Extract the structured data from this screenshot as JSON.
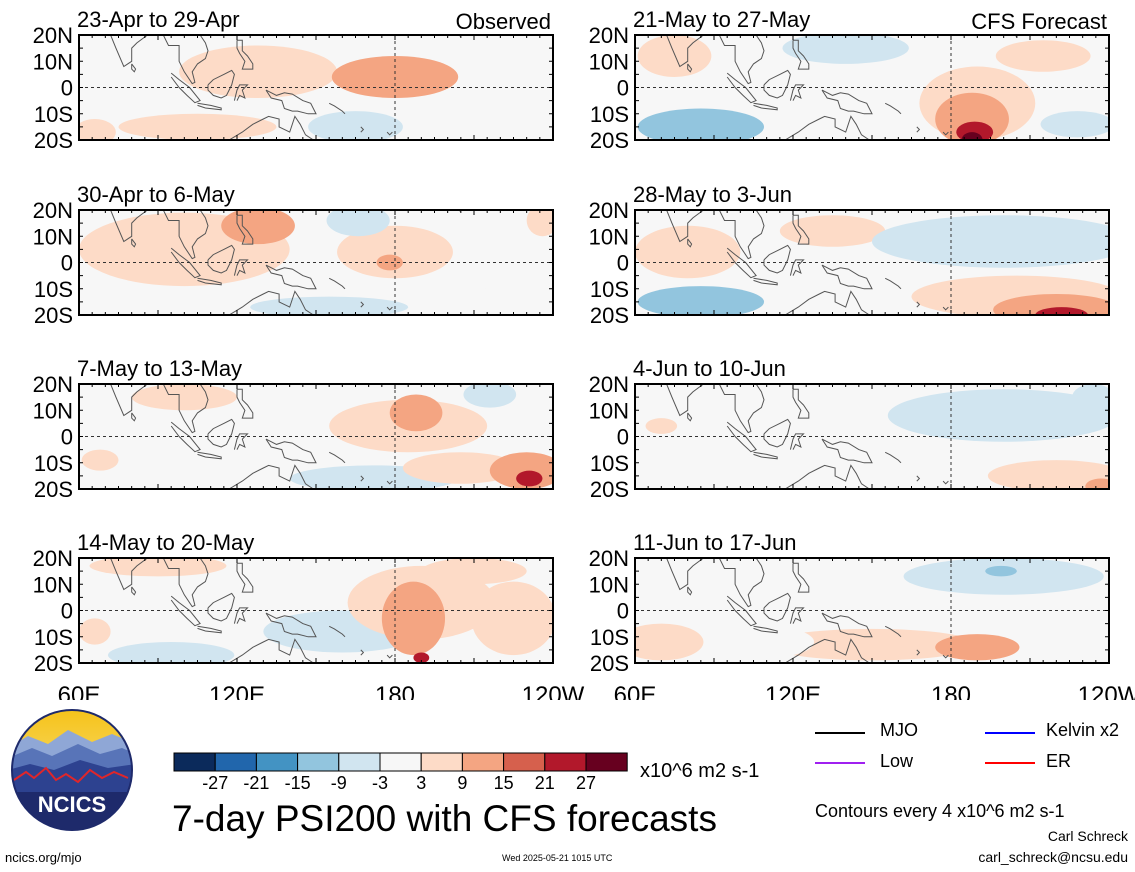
{
  "chart_data": {
    "type": "heatmap",
    "title": "7-day PSI200 with CFS forecasts",
    "units": "x10^6 m2 s-1",
    "contour_note": "Contours every 4 x10^6 m2 s-1",
    "x_ticks": [
      "60E",
      "120E",
      "180",
      "120W"
    ],
    "y_ticks": [
      "20N",
      "10N",
      "0",
      "10S",
      "20S"
    ],
    "xlim_deg_east": [
      60,
      240
    ],
    "ylim_deg": [
      -20,
      20
    ],
    "columns": [
      {
        "label": "Observed",
        "panels": [
          {
            "title": "23-Apr to 29-Apr",
            "blobs": [
              {
                "lon": 180,
                "lat": 4,
                "rlon": 24,
                "rlat": 8,
                "value": 11
              },
              {
                "lon": 128,
                "lat": 6,
                "rlon": 30,
                "rlat": 10,
                "value": 4
              },
              {
                "lon": 66,
                "lat": -17,
                "rlon": 8,
                "rlat": 5,
                "value": 6
              },
              {
                "lon": 165,
                "lat": -15,
                "rlon": 18,
                "rlat": 6,
                "value": -8
              },
              {
                "lon": 105,
                "lat": -15,
                "rlon": 30,
                "rlat": 5,
                "value": 4
              },
              {
                "lon": 100,
                "lat": 11,
                "rlon": 12,
                "rlat": 7,
                "value": -3
              },
              {
                "lon": 210,
                "lat": 17,
                "rlon": 20,
                "rlat": 4,
                "value": -3
              },
              {
                "lon": 225,
                "lat": -5,
                "rlon": 16,
                "rlat": 6,
                "value": -3
              }
            ]
          },
          {
            "title": "30-Apr to 6-May",
            "blobs": [
              {
                "lon": 128,
                "lat": 14,
                "rlon": 14,
                "rlat": 7,
                "value": 12
              },
              {
                "lon": 100,
                "lat": 5,
                "rlon": 40,
                "rlat": 14,
                "value": 5
              },
              {
                "lon": 178,
                "lat": 0,
                "rlon": 5,
                "rlat": 3,
                "value": 10
              },
              {
                "lon": 180,
                "lat": 4,
                "rlon": 22,
                "rlat": 10,
                "value": 4
              },
              {
                "lon": 166,
                "lat": 16,
                "rlon": 12,
                "rlat": 6,
                "value": -9
              },
              {
                "lon": 155,
                "lat": -17,
                "rlon": 30,
                "rlat": 4,
                "value": -4
              },
              {
                "lon": 236,
                "lat": 16,
                "rlon": 6,
                "rlat": 6,
                "value": 7
              },
              {
                "lon": 200,
                "lat": -5,
                "rlon": 18,
                "rlat": 8,
                "value": -3
              }
            ]
          },
          {
            "title": "7-May to 13-May",
            "blobs": [
              {
                "lon": 188,
                "lat": 9,
                "rlon": 10,
                "rlat": 7,
                "value": 12
              },
              {
                "lon": 230,
                "lat": -13,
                "rlon": 14,
                "rlat": 7,
                "value": 14
              },
              {
                "lon": 231,
                "lat": -16,
                "rlon": 5,
                "rlat": 3,
                "value": 21
              },
              {
                "lon": 205,
                "lat": -12,
                "rlon": 22,
                "rlat": 6,
                "value": 6
              },
              {
                "lon": 185,
                "lat": 4,
                "rlon": 30,
                "rlat": 10,
                "value": 5
              },
              {
                "lon": 172,
                "lat": -16,
                "rlon": 32,
                "rlat": 5,
                "value": -5
              },
              {
                "lon": 216,
                "lat": 16,
                "rlon": 10,
                "rlat": 5,
                "value": -7
              },
              {
                "lon": 68,
                "lat": -9,
                "rlon": 7,
                "rlat": 4,
                "value": 4
              },
              {
                "lon": 100,
                "lat": 15,
                "rlon": 20,
                "rlat": 5,
                "value": 4
              }
            ]
          },
          {
            "title": "14-May to 20-May",
            "blobs": [
              {
                "lon": 187,
                "lat": -3,
                "rlon": 12,
                "rlat": 14,
                "value": 13
              },
              {
                "lon": 190,
                "lat": -18,
                "rlon": 3,
                "rlat": 2,
                "value": 22
              },
              {
                "lon": 190,
                "lat": 3,
                "rlon": 28,
                "rlat": 14,
                "value": 6
              },
              {
                "lon": 225,
                "lat": -3,
                "rlon": 16,
                "rlat": 14,
                "value": 4
              },
              {
                "lon": 90,
                "lat": 17,
                "rlon": 26,
                "rlat": 4,
                "value": 7
              },
              {
                "lon": 95,
                "lat": -17,
                "rlon": 24,
                "rlat": 5,
                "value": -9
              },
              {
                "lon": 160,
                "lat": -8,
                "rlon": 30,
                "rlat": 8,
                "value": -4
              },
              {
                "lon": 66,
                "lat": -8,
                "rlon": 6,
                "rlat": 5,
                "value": 4
              },
              {
                "lon": 210,
                "lat": 15,
                "rlon": 20,
                "rlat": 5,
                "value": 3
              }
            ]
          }
        ]
      },
      {
        "label": "CFS Forecast",
        "panels": [
          {
            "title": "21-May to 27-May",
            "blobs": [
              {
                "lon": 188,
                "lat": -12,
                "rlon": 14,
                "rlat": 10,
                "value": 14
              },
              {
                "lon": 189,
                "lat": -17,
                "rlon": 7,
                "rlat": 4,
                "value": 21
              },
              {
                "lon": 188,
                "lat": -20,
                "rlon": 4,
                "rlat": 3,
                "value": 27
              },
              {
                "lon": 190,
                "lat": -6,
                "rlon": 22,
                "rlat": 14,
                "value": 5
              },
              {
                "lon": 85,
                "lat": -15,
                "rlon": 24,
                "rlat": 7,
                "value": -10
              },
              {
                "lon": 140,
                "lat": 15,
                "rlon": 24,
                "rlat": 6,
                "value": -5
              },
              {
                "lon": 228,
                "lat": -14,
                "rlon": 14,
                "rlat": 5,
                "value": -4
              },
              {
                "lon": 75,
                "lat": 12,
                "rlon": 14,
                "rlat": 8,
                "value": 4
              },
              {
                "lon": 215,
                "lat": 12,
                "rlon": 18,
                "rlat": 6,
                "value": 3
              }
            ]
          },
          {
            "title": "28-May to 3-Jun",
            "blobs": [
              {
                "lon": 220,
                "lat": -18,
                "rlon": 24,
                "rlat": 6,
                "value": 14
              },
              {
                "lon": 222,
                "lat": -20,
                "rlon": 10,
                "rlat": 3,
                "value": 21
              },
              {
                "lon": 205,
                "lat": -13,
                "rlon": 40,
                "rlat": 8,
                "value": 5
              },
              {
                "lon": 85,
                "lat": -15,
                "rlon": 24,
                "rlat": 6,
                "value": -10
              },
              {
                "lon": 200,
                "lat": 8,
                "rlon": 50,
                "rlat": 10,
                "value": -4
              },
              {
                "lon": 80,
                "lat": 4,
                "rlon": 20,
                "rlat": 10,
                "value": 4
              },
              {
                "lon": 135,
                "lat": 12,
                "rlon": 20,
                "rlat": 6,
                "value": 3
              }
            ]
          },
          {
            "title": "4-Jun to 10-Jun",
            "blobs": [
              {
                "lon": 220,
                "lat": -15,
                "rlon": 26,
                "rlat": 6,
                "value": 8
              },
              {
                "lon": 237,
                "lat": -19,
                "rlon": 6,
                "rlat": 3,
                "value": 13
              },
              {
                "lon": 200,
                "lat": 8,
                "rlon": 44,
                "rlat": 10,
                "value": -4
              },
              {
                "lon": 234,
                "lat": 15,
                "rlon": 8,
                "rlat": 5,
                "value": -8
              },
              {
                "lon": 70,
                "lat": 4,
                "rlon": 6,
                "rlat": 3,
                "value": 5
              },
              {
                "lon": 150,
                "lat": 12,
                "rlon": 20,
                "rlat": 5,
                "value": -3
              }
            ]
          },
          {
            "title": "11-Jun to 17-Jun",
            "blobs": [
              {
                "lon": 190,
                "lat": -14,
                "rlon": 16,
                "rlat": 5,
                "value": 10
              },
              {
                "lon": 70,
                "lat": -12,
                "rlon": 16,
                "rlat": 7,
                "value": 5
              },
              {
                "lon": 150,
                "lat": -13,
                "rlon": 40,
                "rlat": 6,
                "value": 3
              },
              {
                "lon": 200,
                "lat": 13,
                "rlon": 38,
                "rlat": 7,
                "value": -5
              },
              {
                "lon": 199,
                "lat": 15,
                "rlon": 6,
                "rlat": 2,
                "value": -12
              },
              {
                "lon": 110,
                "lat": -12,
                "rlon": 18,
                "rlat": 6,
                "value": -3
              }
            ]
          }
        ]
      }
    ]
  },
  "colorbar": {
    "labels": [
      "-27",
      "-21",
      "-15",
      "-9",
      "-3",
      "3",
      "9",
      "15",
      "21",
      "27"
    ],
    "colors": [
      "#0b2a5b",
      "#2166ac",
      "#4393c3",
      "#92c5de",
      "#d1e5f0",
      "#f7f7f7",
      "#fddbc7",
      "#f4a582",
      "#d6604d",
      "#b2182b",
      "#67001f"
    ],
    "thresholds": [
      -27,
      -21,
      -15,
      -9,
      -3,
      3,
      9,
      15,
      21,
      27
    ],
    "units_label": "x10^6 m2 s-1"
  },
  "legend": [
    {
      "label": "MJO",
      "color": "#000000"
    },
    {
      "label": "Kelvin x2",
      "color": "#0000ff"
    },
    {
      "label": "Low",
      "color": "#a020f0"
    },
    {
      "label": "ER",
      "color": "#ff0000"
    }
  ],
  "logo_text": "NCICS",
  "title": "7-day PSI200 with CFS forecasts",
  "contours_note": "Contours every 4 x10^6 m2 s-1",
  "credit_name": "Carl Schreck",
  "credit_email": "carl_schreck@ncsu.edu",
  "site_url": "ncics.org/mjo",
  "timestamp": "Wed 2025-05-21 1015 UTC"
}
